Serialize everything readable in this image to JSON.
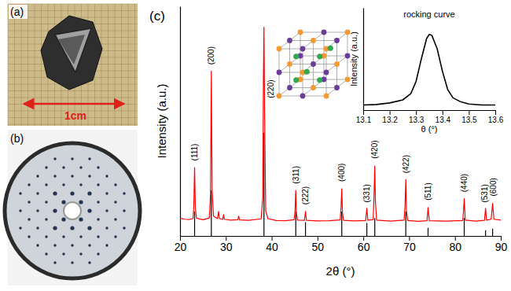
{
  "panels": {
    "labels": [
      "(a)",
      "(b)",
      "(c)"
    ],
    "scale_bar": "1cm"
  },
  "chart_data": [
    {
      "type": "line",
      "xlabel": "2θ (°)",
      "ylabel": "Intensity (a.u.)",
      "xlim": [
        20,
        90
      ],
      "xticks": [
        20,
        30,
        40,
        50,
        60,
        70,
        80,
        90
      ],
      "ylim": [
        0,
        110
      ],
      "tick_labels": "x",
      "series": [
        {
          "type": "stem",
          "color": "#000000",
          "x": [
            23.18,
            26.83,
            38.32,
            45.26,
            47.38,
            55.3,
            60.77,
            62.5,
            69.27,
            74.13,
            82.02,
            86.68,
            88.22
          ],
          "values": [
            11.7,
            21.8,
            49.4,
            11.7,
            6.6,
            11.7,
            6.2,
            8.6,
            11.7,
            3.9,
            8.6,
            2.7,
            3.5
          ]
        },
        {
          "type": "line",
          "color": "#ff0000",
          "x": [
            20,
            21,
            22,
            22.85,
            23,
            23.18,
            23.35,
            23.6,
            25,
            26.4,
            26.65,
            26.83,
            27,
            27.3,
            28.2,
            28.4,
            28.6,
            29.3,
            29.5,
            29.7,
            31,
            32.6,
            32.8,
            33,
            35,
            37.7,
            38.05,
            38.2,
            38.32,
            38.45,
            38.7,
            39.2,
            41,
            43,
            44.9,
            45.1,
            45.26,
            45.4,
            45.65,
            47.15,
            47.38,
            47.6,
            50,
            52.5,
            54.95,
            55.15,
            55.3,
            55.45,
            55.7,
            58,
            60.5,
            60.77,
            61,
            62.15,
            62.35,
            62.5,
            62.65,
            62.9,
            66,
            68.9,
            69.1,
            69.27,
            69.42,
            69.7,
            72,
            73.9,
            74.13,
            74.4,
            78,
            81.7,
            81.87,
            82.02,
            82.25,
            84.5,
            86.45,
            86.68,
            86.9,
            87.9,
            88.07,
            88.22,
            88.5,
            90
          ],
          "values": [
            8.5,
            8,
            7.9,
            8.3,
            14,
            32.7,
            13,
            8.5,
            7.8,
            8.6,
            20,
            79,
            22,
            9.5,
            8.3,
            11.7,
            8.4,
            7.9,
            10.2,
            8,
            7.6,
            7.8,
            9.5,
            7.7,
            7.5,
            8.2,
            18,
            75,
            100,
            60,
            12,
            8.3,
            7.4,
            7.3,
            7.8,
            12,
            21.8,
            11,
            7.6,
            7.5,
            11.7,
            7.5,
            7.2,
            7.3,
            7.7,
            14,
            22.6,
            11,
            7.5,
            7.2,
            7.4,
            13.2,
            7.6,
            7.8,
            20,
            33.5,
            16,
            7.6,
            7.1,
            7.6,
            14,
            27,
            12,
            7.4,
            7,
            7.3,
            13.6,
            7.3,
            7.1,
            7.4,
            12,
            17.9,
            7.6,
            7.1,
            7.5,
            13.2,
            7.6,
            8,
            12,
            15.6,
            8,
            7.6
          ]
        }
      ],
      "annotations": [
        {
          "text": "(111)",
          "x": 23.18,
          "y": 36
        },
        {
          "text": "(200)",
          "x": 26.83,
          "y": 82
        },
        {
          "text": "(220)",
          "x": 39.8,
          "y": 66
        },
        {
          "text": "(311)",
          "x": 45.26,
          "y": 25
        },
        {
          "text": "(222)",
          "x": 47.38,
          "y": 15
        },
        {
          "text": "(400)",
          "x": 55.3,
          "y": 26
        },
        {
          "text": "(331)",
          "x": 60.77,
          "y": 16
        },
        {
          "text": "(420)",
          "x": 62.5,
          "y": 37
        },
        {
          "text": "(422)",
          "x": 69.27,
          "y": 30
        },
        {
          "text": "(511)",
          "x": 74.13,
          "y": 17
        },
        {
          "text": "(440)",
          "x": 82.02,
          "y": 21
        },
        {
          "text": "(531)",
          "x": 86.4,
          "y": 16
        },
        {
          "text": "(600)",
          "x": 88.4,
          "y": 19
        }
      ]
    },
    {
      "type": "line",
      "title": "rocking curve",
      "xlabel": "θ (°)",
      "ylabel": "Intensity (a.u.)",
      "xlim": [
        13.1,
        13.6
      ],
      "xticks": [
        13.1,
        13.2,
        13.3,
        13.4,
        13.5,
        13.6
      ],
      "ylim": [
        0,
        100
      ],
      "tick_labels": "x",
      "series": [
        {
          "color": "#000000",
          "x": [
            13.1,
            13.15,
            13.2,
            13.25,
            13.28,
            13.3,
            13.32,
            13.34,
            13.35,
            13.36,
            13.38,
            13.4,
            13.42,
            13.44,
            13.47,
            13.5,
            13.55,
            13.6
          ],
          "values": [
            5,
            5.5,
            7,
            10,
            16,
            28,
            50,
            70,
            74,
            73,
            60,
            38,
            20,
            12,
            8,
            6,
            5,
            5
          ]
        }
      ]
    }
  ]
}
